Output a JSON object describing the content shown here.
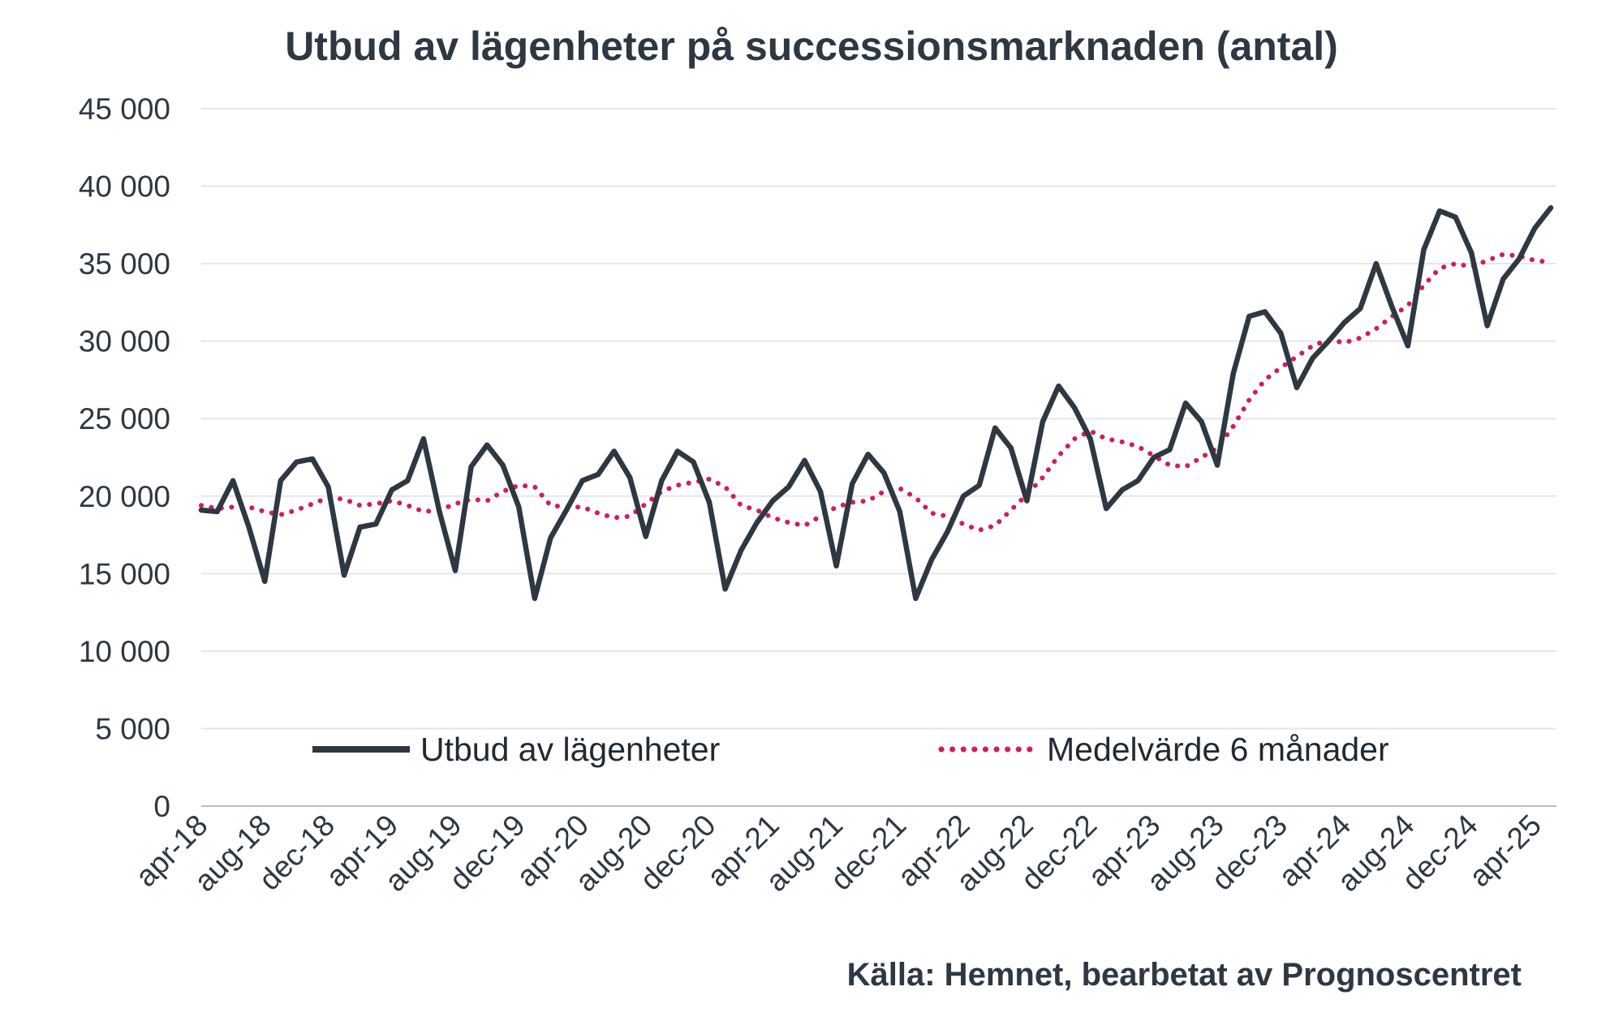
{
  "title": "Utbud av lägenheter på successionsmarknaden (antal)",
  "source": "Källa: Hemnet, bearbetat av Prognoscentret",
  "colors": {
    "series_main": "#2d3843",
    "series_avg": "#d21c5c",
    "grid": "#e6e6e6",
    "axis": "#bfbfbf"
  },
  "chart_data": {
    "type": "line",
    "title": "Utbud av lägenheter på successionsmarknaden (antal)",
    "ylim": [
      0,
      45000
    ],
    "yticks": [
      0,
      5000,
      10000,
      15000,
      20000,
      25000,
      30000,
      35000,
      40000,
      45000
    ],
    "ytick_labels": [
      "0",
      "5 000",
      "10 000",
      "15 000",
      "20 000",
      "25 000",
      "30 000",
      "35 000",
      "40 000",
      "45 000"
    ],
    "xtick_labels": [
      "apr-18",
      "aug-18",
      "dec-18",
      "apr-19",
      "aug-19",
      "dec-19",
      "apr-20",
      "aug-20",
      "dec-20",
      "apr-21",
      "aug-21",
      "dec-21",
      "apr-22",
      "aug-22",
      "dec-22",
      "apr-23",
      "aug-23",
      "dec-23",
      "apr-24",
      "aug-24",
      "dec-24",
      "apr-25"
    ],
    "xtick_interval_months": 4,
    "grid": true,
    "legend_position": "bottom",
    "series": [
      {
        "name": "Utbud av lägenheter",
        "style": "solid",
        "values": [
          19100,
          19000,
          21000,
          18000,
          14500,
          21000,
          22200,
          22400,
          20600,
          14900,
          18000,
          18200,
          20400,
          21000,
          23700,
          19000,
          15200,
          21900,
          23300,
          22000,
          19300,
          13400,
          17300,
          19100,
          21000,
          21400,
          22900,
          21200,
          17400,
          21000,
          22900,
          22200,
          19600,
          14000,
          16500,
          18300,
          19700,
          20600,
          22300,
          20300,
          15500,
          20800,
          22700,
          21500,
          19000,
          13400,
          15900,
          17700,
          20000,
          20700,
          24400,
          23100,
          19700,
          24800,
          27100,
          25700,
          23700,
          19200,
          20400,
          21000,
          22500,
          23000,
          26000,
          24800,
          22000,
          27900,
          31600,
          31900,
          30500,
          27000,
          28900,
          30000,
          31200,
          32100,
          35000,
          32200,
          29700,
          35900,
          38400,
          38000,
          35700,
          31000,
          34000,
          35300,
          37300,
          38600
        ]
      },
      {
        "name": "Medelvärde 6 månader",
        "style": "dotted",
        "values": [
          19400,
          19200,
          19300,
          19300,
          19000,
          18800,
          19100,
          19500,
          19900,
          19800,
          19400,
          19500,
          19700,
          19400,
          19000,
          19100,
          19500,
          19800,
          19700,
          20300,
          20700,
          20600,
          19400,
          19300,
          19300,
          18900,
          18600,
          18700,
          19500,
          20300,
          20700,
          20900,
          21100,
          20600,
          19400,
          19100,
          18600,
          18300,
          18100,
          18700,
          19300,
          19600,
          19700,
          20300,
          20500,
          19900,
          18900,
          18700,
          18200,
          17800,
          18100,
          19100,
          20100,
          21200,
          22600,
          23700,
          24200,
          23700,
          23500,
          23200,
          22600,
          22000,
          21900,
          22500,
          23100,
          24500,
          26200,
          27500,
          28300,
          29000,
          29700,
          30100,
          29900,
          30200,
          30800,
          31600,
          32300,
          33600,
          34700,
          35000,
          34800,
          35200,
          35600,
          35500,
          35200,
          35100
        ]
      }
    ]
  }
}
